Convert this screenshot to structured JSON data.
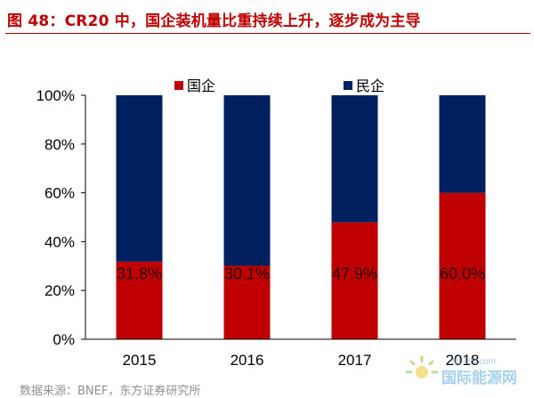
{
  "title": "图 48：CR20 中，国企装机量比重持续上升，逐步成为主导",
  "source": "数据来源：BNEF，东方证券研究所",
  "watermark": {
    "sub": "IN-EN.com",
    "main": "国际能源网"
  },
  "colors": {
    "title": "#c00000",
    "state_owned": "#c00000",
    "private": "#002060"
  },
  "chart_data": {
    "type": "bar",
    "stacked": true,
    "categories": [
      "2015",
      "2016",
      "2017",
      "2018"
    ],
    "series": [
      {
        "name": "国企",
        "values": [
          31.8,
          30.1,
          47.9,
          60.0
        ],
        "color": "#c00000"
      },
      {
        "name": "民企",
        "values": [
          68.2,
          69.9,
          52.1,
          40.0
        ],
        "color": "#002060"
      }
    ],
    "data_labels": [
      "31.8%",
      "30.1%",
      "47.9%",
      "60.0%"
    ],
    "yticks": [
      "0%",
      "20%",
      "40%",
      "60%",
      "80%",
      "100%"
    ],
    "ylim": [
      0,
      100
    ],
    "legend_position": "top",
    "grid": false
  }
}
